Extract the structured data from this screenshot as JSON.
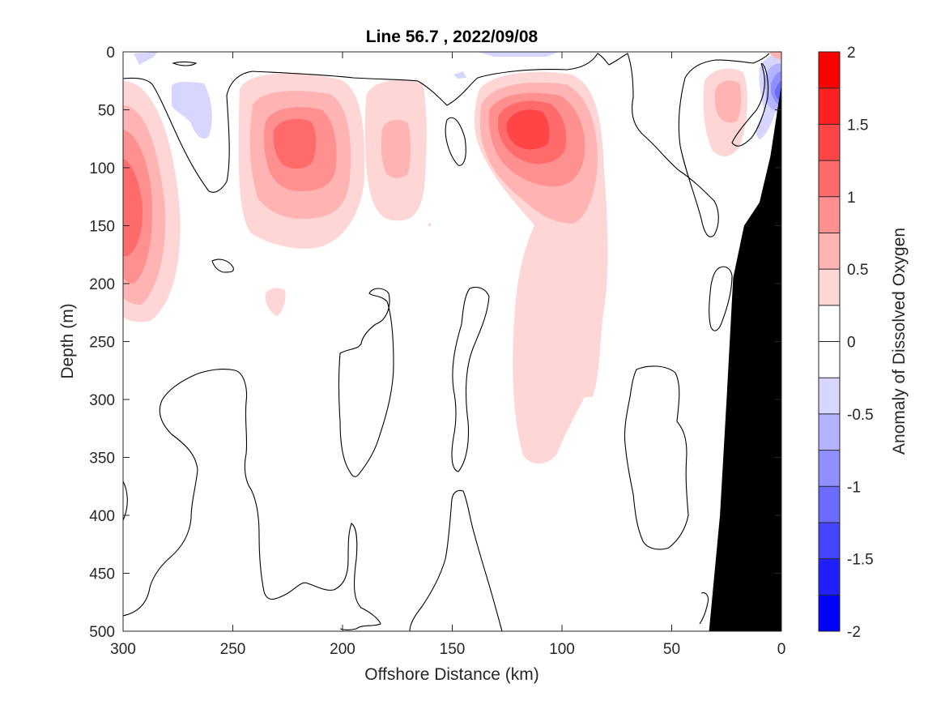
{
  "chart_data": {
    "type": "heatmap",
    "title": "Line 56.7 , 2022/09/08",
    "xlabel": "Offshore Distance (km)",
    "ylabel": "Depth (m)",
    "colorbar_label": "Anomaly of Dissolved Oxygen",
    "xlim": [
      300,
      0
    ],
    "ylim": [
      500,
      0
    ],
    "x_reversed": true,
    "y_reversed": true,
    "x_ticks": [
      300,
      250,
      200,
      150,
      100,
      50,
      0
    ],
    "y_ticks": [
      0,
      50,
      100,
      150,
      200,
      250,
      300,
      350,
      400,
      450,
      500
    ],
    "x_tick_labels": [
      "300",
      "250",
      "200",
      "150",
      "100",
      "50",
      "0"
    ],
    "y_tick_labels": [
      "0",
      "50",
      "100",
      "150",
      "200",
      "250",
      "300",
      "350",
      "400",
      "450",
      "500"
    ],
    "colorbar": {
      "min": -2,
      "max": 2,
      "levels": [
        -2,
        -1.75,
        -1.5,
        -1.25,
        -1,
        -0.75,
        -0.5,
        -0.25,
        0,
        0.25,
        0.5,
        0.75,
        1,
        1.25,
        1.5,
        1.75,
        2
      ],
      "ticks": [
        -2,
        -1.5,
        -1,
        -0.5,
        0,
        0.5,
        1,
        1.5,
        2
      ],
      "tick_labels": [
        "-2",
        "-1.5",
        "-1",
        "-0.5",
        "0",
        "0.5",
        "1",
        "1.5",
        "2"
      ],
      "colors": [
        "#0000ff",
        "#2020ff",
        "#4545ff",
        "#6b6bff",
        "#9090ff",
        "#b3b3ff",
        "#d6d6ff",
        "#ffffff",
        "#ffffff",
        "#ffd6d6",
        "#ffb3b3",
        "#ff9090",
        "#ff6b6b",
        "#ff4545",
        "#ff2020",
        "#ff0000"
      ]
    },
    "anomaly_features": [
      {
        "x": 297,
        "y": 150,
        "peak": 1.25
      },
      {
        "x": 224,
        "y": 78,
        "peak": 1.25
      },
      {
        "x": 176,
        "y": 90,
        "peak": 0.75
      },
      {
        "x": 113,
        "y": 65,
        "peak": 1.25
      },
      {
        "x": 100,
        "y": 250,
        "peak": 0.25
      },
      {
        "x": 215,
        "y": 215,
        "peak": 0.25
      },
      {
        "x": 22,
        "y": 45,
        "peak": 0.5
      },
      {
        "x": 270,
        "y": 40,
        "peak": -0.25
      },
      {
        "x": 4,
        "y": 35,
        "peak": -1.25
      }
    ],
    "bathymetry": {
      "color": "#000000",
      "boundary": [
        {
          "x": 33,
          "depth": 500
        },
        {
          "x": 28,
          "depth": 400
        },
        {
          "x": 25,
          "depth": 300
        },
        {
          "x": 22,
          "depth": 195
        },
        {
          "x": 17,
          "depth": 150
        },
        {
          "x": 10,
          "depth": 130
        },
        {
          "x": 5,
          "depth": 90
        },
        {
          "x": 1,
          "depth": 40
        },
        {
          "x": 0,
          "depth": 28
        }
      ]
    }
  }
}
